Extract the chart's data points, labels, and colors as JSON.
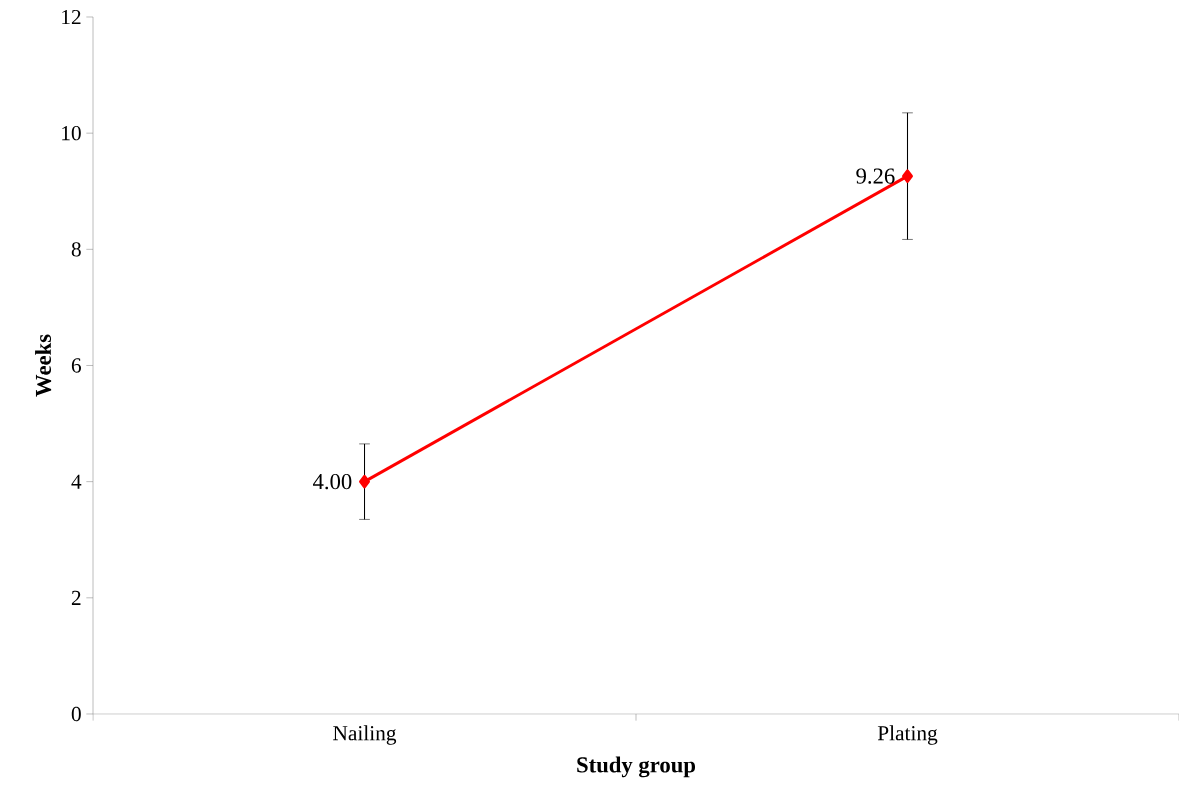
{
  "chart_data": {
    "type": "line",
    "xlabel": "Study group",
    "ylabel": "Weeks",
    "categories": [
      "Nailing",
      "Plating"
    ],
    "series": [
      {
        "color": "#ff0000",
        "values": [
          4.0,
          9.26
        ],
        "errors": [
          0.65,
          1.09
        ],
        "value_labels": [
          "4.00",
          "9.26"
        ]
      }
    ],
    "ylim": [
      0,
      12
    ],
    "yticks": [
      0,
      2,
      4,
      6,
      8,
      10,
      12
    ],
    "grid": false,
    "marker": "diamond",
    "line_style": "solid"
  }
}
